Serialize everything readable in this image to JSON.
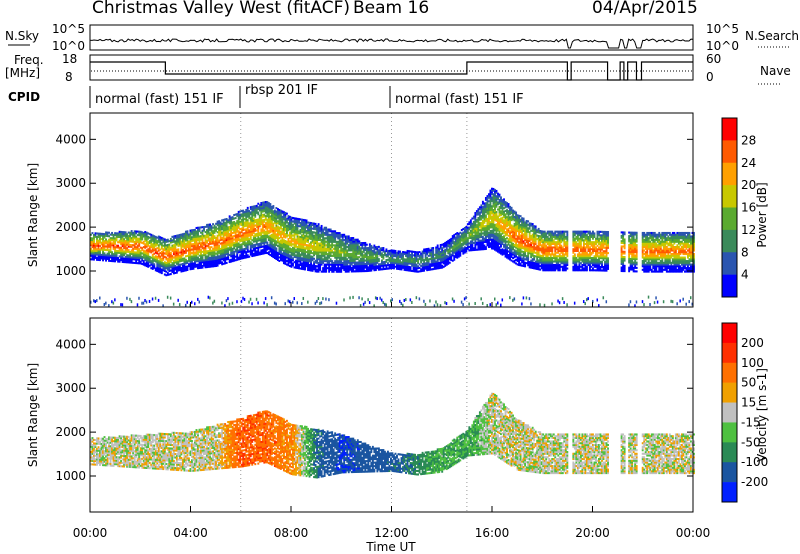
{
  "header": {
    "title": "Christmas Valley West (fitACF)",
    "beam": "Beam 16",
    "date": "04/Apr/2015"
  },
  "strip_panels": {
    "nsky": {
      "label": "N.Sky",
      "ticks": [
        "10^5",
        "10^0"
      ],
      "right_label": "N.Search",
      "right_ticks": [
        "10^5",
        "10^0"
      ]
    },
    "freq": {
      "label_line1": "Freq.",
      "label_line2": "[MHz]",
      "ticks": [
        "18",
        "8"
      ],
      "right_label": "Nave",
      "right_ticks": [
        "60",
        "0"
      ]
    },
    "cpid": {
      "label": "CPID",
      "modes": [
        "normal (fast) 151 IF",
        "rbsp 201 IF",
        "normal (fast) 151 IF"
      ]
    }
  },
  "power_colorbar": {
    "label": "Power [dB]",
    "ticks": [
      "28",
      "24",
      "20",
      "16",
      "12",
      "8",
      "4"
    ],
    "colors": [
      "#0000ff",
      "#2a55b0",
      "#3a8a5a",
      "#5aaa30",
      "#c8c800",
      "#ffa000",
      "#ff5a00",
      "#ff0000"
    ]
  },
  "velocity_colorbar": {
    "label": "Velocity [m s-1]",
    "ticks": [
      "200",
      "100",
      "50",
      "15",
      "-15",
      "-50",
      "-100",
      "-200"
    ],
    "colors": [
      "#0020ff",
      "#1a55a0",
      "#2a8a55",
      "#4ec040",
      "#c0c0c0",
      "#f0a000",
      "#ff7000",
      "#ff3000",
      "#ff0000"
    ]
  },
  "chart_data": [
    {
      "type": "heatmap",
      "title": "",
      "xlabel": "Time UT",
      "ylabel": "Slant Range [km]",
      "xlim": [
        "00:00",
        "24:00"
      ],
      "ylim": [
        180,
        4600
      ],
      "x_tick_labels": [
        "00:00",
        "04:00",
        "08:00",
        "12:00",
        "16:00",
        "20:00",
        "00:00"
      ],
      "y_tick_labels": [
        "1000",
        "2000",
        "3000",
        "4000"
      ],
      "quantity": "Power [dB]",
      "band_center_km": [
        [
          0,
          1550
        ],
        [
          2,
          1530
        ],
        [
          3,
          1300
        ],
        [
          4,
          1480
        ],
        [
          5,
          1600
        ],
        [
          6,
          1820
        ],
        [
          7,
          2000
        ],
        [
          7.5,
          1800
        ],
        [
          8,
          1650
        ],
        [
          9,
          1520
        ],
        [
          10,
          1400
        ],
        [
          11,
          1300
        ],
        [
          12,
          1250
        ],
        [
          13,
          1200
        ],
        [
          14,
          1330
        ],
        [
          15,
          1750
        ],
        [
          16,
          2200
        ],
        [
          17,
          1700
        ],
        [
          18,
          1450
        ],
        [
          19,
          1450
        ],
        [
          20,
          1450
        ],
        [
          22,
          1420
        ],
        [
          24,
          1420
        ]
      ],
      "band_half_width_km": [
        [
          0,
          300
        ],
        [
          4,
          450
        ],
        [
          7,
          600
        ],
        [
          9,
          550
        ],
        [
          12,
          200
        ],
        [
          15,
          300
        ],
        [
          16,
          700
        ],
        [
          18,
          450
        ],
        [
          24,
          450
        ]
      ],
      "peak_power_db": [
        [
          0,
          28
        ],
        [
          3,
          28
        ],
        [
          6,
          26
        ],
        [
          8,
          22
        ],
        [
          10,
          16
        ],
        [
          12,
          12
        ],
        [
          14,
          10
        ],
        [
          16,
          20
        ],
        [
          17,
          28
        ],
        [
          24,
          26
        ]
      ]
    },
    {
      "type": "heatmap",
      "title": "",
      "xlabel": "Time UT",
      "ylabel": "Slant Range [km]",
      "xlim": [
        "00:00",
        "24:00"
      ],
      "ylim": [
        180,
        4600
      ],
      "x_tick_labels": [
        "00:00",
        "04:00",
        "08:00",
        "12:00",
        "16:00",
        "20:00",
        "00:00"
      ],
      "y_tick_labels": [
        "1000",
        "2000",
        "3000",
        "4000"
      ],
      "quantity": "Velocity [m s-1]",
      "band_center_km": [
        [
          0,
          1550
        ],
        [
          4,
          1550
        ],
        [
          6,
          1750
        ],
        [
          7,
          1900
        ],
        [
          8,
          1600
        ],
        [
          9,
          1500
        ],
        [
          10,
          1500
        ],
        [
          11,
          1400
        ],
        [
          12,
          1300
        ],
        [
          13,
          1250
        ],
        [
          14,
          1350
        ],
        [
          15,
          1750
        ],
        [
          16,
          2200
        ],
        [
          17,
          1700
        ],
        [
          18,
          1500
        ],
        [
          24,
          1500
        ]
      ],
      "velocity_m_s": [
        [
          0,
          0
        ],
        [
          5,
          0
        ],
        [
          6,
          -100
        ],
        [
          8,
          -60
        ],
        [
          9,
          100
        ],
        [
          10,
          200
        ],
        [
          12,
          120
        ],
        [
          14,
          40
        ],
        [
          15,
          60
        ],
        [
          16,
          0
        ],
        [
          24,
          0
        ]
      ]
    }
  ]
}
